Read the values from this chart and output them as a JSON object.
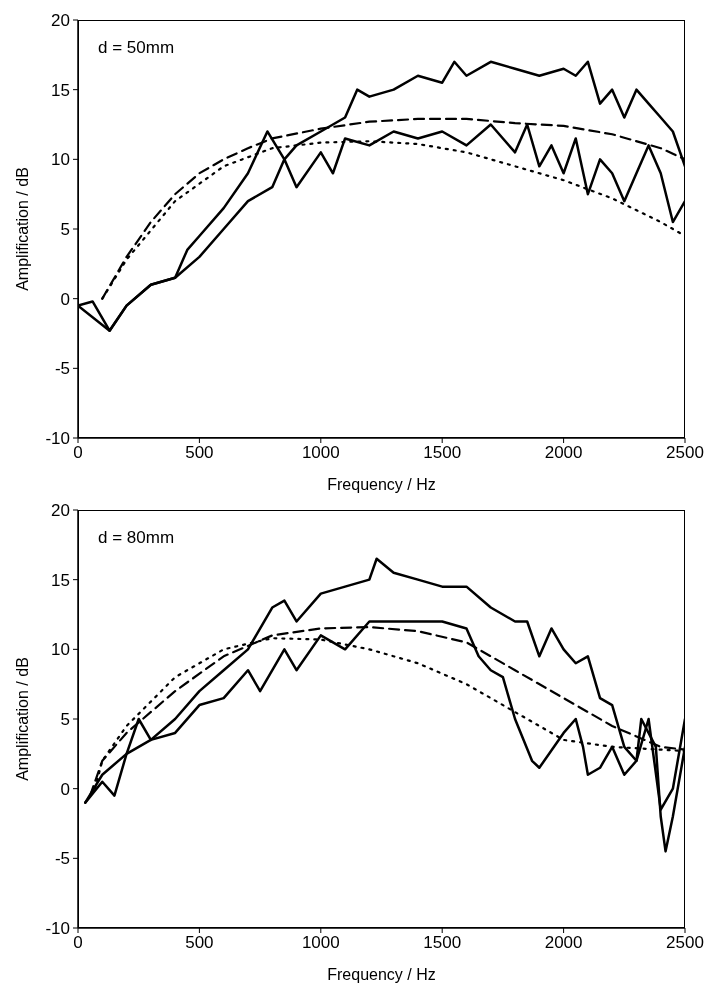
{
  "chart_data": [
    {
      "type": "line",
      "xlabel": "Frequency / Hz",
      "ylabel": "Amplification / dB",
      "annotations": [
        "d = 50mm"
      ],
      "xlim": [
        0,
        2500
      ],
      "xticks": [
        0,
        500,
        1000,
        1500,
        2000,
        2500
      ],
      "ylim": [
        -10,
        20
      ],
      "yticks": [
        -10,
        -5,
        0,
        5,
        10,
        15,
        20
      ],
      "marker": "none",
      "series": [
        {
          "color": "#000000",
          "line_style": "solid",
          "x": [
            0,
            60,
            130,
            200,
            300,
            400,
            450,
            500,
            600,
            700,
            780,
            850,
            900,
            1000,
            1100,
            1150,
            1200,
            1300,
            1400,
            1500,
            1550,
            1600,
            1700,
            1800,
            1900,
            2000,
            2050,
            2100,
            2150,
            2200,
            2250,
            2300,
            2350,
            2400,
            2450,
            2500
          ],
          "values": [
            -0.5,
            -0.2,
            -2.3,
            -0.5,
            1,
            1.5,
            3.5,
            4.5,
            6.5,
            9,
            12,
            10,
            11,
            12,
            13,
            15,
            14.5,
            15,
            16,
            15.5,
            17,
            16,
            17,
            16.5,
            16,
            16.5,
            16,
            17,
            14,
            15,
            13,
            15,
            14,
            13,
            12,
            9.5
          ]
        },
        {
          "color": "#000000",
          "line_style": "solid",
          "x": [
            0,
            130,
            200,
            300,
            400,
            500,
            600,
            700,
            800,
            850,
            900,
            1000,
            1050,
            1100,
            1200,
            1300,
            1400,
            1500,
            1600,
            1700,
            1800,
            1850,
            1900,
            1950,
            2000,
            2050,
            2100,
            2150,
            2200,
            2250,
            2300,
            2350,
            2400,
            2450,
            2500
          ],
          "values": [
            -0.5,
            -2.3,
            -0.5,
            1,
            1.5,
            3,
            5,
            7,
            8,
            10,
            8,
            10.5,
            9,
            11.5,
            11,
            12,
            11.5,
            12,
            11,
            12.5,
            10.5,
            12.5,
            9.5,
            11,
            9,
            11.5,
            7.5,
            10,
            9,
            7,
            9,
            11,
            9,
            5.5,
            7
          ]
        },
        {
          "color": "#000000",
          "line_style": "dashed",
          "x": [
            100,
            200,
            300,
            400,
            500,
            600,
            700,
            800,
            1000,
            1200,
            1400,
            1600,
            1800,
            2000,
            2200,
            2400,
            2500
          ],
          "values": [
            0,
            3,
            5.5,
            7.5,
            9,
            10,
            10.8,
            11.5,
            12.2,
            12.7,
            12.9,
            12.9,
            12.6,
            12.4,
            11.8,
            10.8,
            10
          ]
        },
        {
          "color": "#000000",
          "line_style": "dotted",
          "x": [
            100,
            200,
            400,
            600,
            800,
            1000,
            1200,
            1400,
            1600,
            1800,
            2000,
            2200,
            2400,
            2500
          ],
          "values": [
            0,
            2.8,
            7,
            9.5,
            10.8,
            11.2,
            11.3,
            11.1,
            10.5,
            9.5,
            8.5,
            7.2,
            5.5,
            4.5
          ]
        }
      ]
    },
    {
      "type": "line",
      "xlabel": "Frequency / Hz",
      "ylabel": "Amplification / dB",
      "annotations": [
        "d = 80mm"
      ],
      "xlim": [
        0,
        2500
      ],
      "xticks": [
        0,
        500,
        1000,
        1500,
        2000,
        2500
      ],
      "ylim": [
        -10,
        20
      ],
      "yticks": [
        -10,
        -5,
        0,
        5,
        10,
        15,
        20
      ],
      "marker": "none",
      "series": [
        {
          "color": "#000000",
          "line_style": "solid",
          "x": [
            30,
            100,
            200,
            250,
            300,
            400,
            500,
            600,
            700,
            800,
            850,
            900,
            1000,
            1100,
            1200,
            1230,
            1300,
            1400,
            1500,
            1600,
            1700,
            1800,
            1850,
            1900,
            1950,
            2000,
            2050,
            2100,
            2150,
            2200,
            2250,
            2300,
            2350,
            2400,
            2450,
            2500
          ],
          "values": [
            -1,
            1,
            2.5,
            5,
            3.5,
            5,
            7,
            8.5,
            10,
            13,
            13.5,
            12,
            14,
            14.5,
            15,
            16.5,
            15.5,
            15,
            14.5,
            14.5,
            13,
            12,
            12,
            9.5,
            11.5,
            10,
            9,
            9.5,
            6.5,
            6,
            3,
            2,
            5,
            -1.5,
            0,
            5
          ]
        },
        {
          "color": "#000000",
          "line_style": "solid",
          "x": [
            30,
            100,
            150,
            200,
            300,
            400,
            500,
            600,
            700,
            750,
            850,
            900,
            1000,
            1100,
            1200,
            1300,
            1400,
            1500,
            1600,
            1650,
            1700,
            1750,
            1800,
            1870,
            1900,
            2000,
            2050,
            2080,
            2100,
            2150,
            2200,
            2250,
            2300,
            2320,
            2380,
            2400,
            2420,
            2450,
            2500
          ],
          "values": [
            -1,
            0.5,
            -0.5,
            2.5,
            3.5,
            4,
            6,
            6.5,
            8.5,
            7,
            10,
            8.5,
            11,
            10,
            12,
            12,
            12,
            12,
            11.5,
            9.5,
            8.5,
            8,
            5,
            2,
            1.5,
            4,
            5,
            3,
            1,
            1.5,
            3,
            1,
            2,
            5,
            3,
            -2,
            -4.5,
            -2,
            3
          ]
        },
        {
          "color": "#000000",
          "line_style": "dashed",
          "x": [
            50,
            100,
            200,
            400,
            600,
            800,
            1000,
            1200,
            1400,
            1600,
            1800,
            2000,
            2200,
            2400,
            2500
          ],
          "values": [
            -0.5,
            2,
            4,
            7,
            9.5,
            11,
            11.5,
            11.6,
            11.3,
            10.5,
            8.5,
            6.5,
            4.5,
            3,
            2.8
          ]
        },
        {
          "color": "#000000",
          "line_style": "dotted",
          "x": [
            70,
            100,
            200,
            400,
            600,
            800,
            1000,
            1200,
            1400,
            1600,
            1800,
            2000,
            2200,
            2400,
            2500
          ],
          "values": [
            0,
            2,
            4.5,
            8,
            10,
            10.8,
            10.7,
            10,
            9,
            7.5,
            5.5,
            3.5,
            3,
            2.8,
            2.7
          ]
        }
      ]
    }
  ]
}
